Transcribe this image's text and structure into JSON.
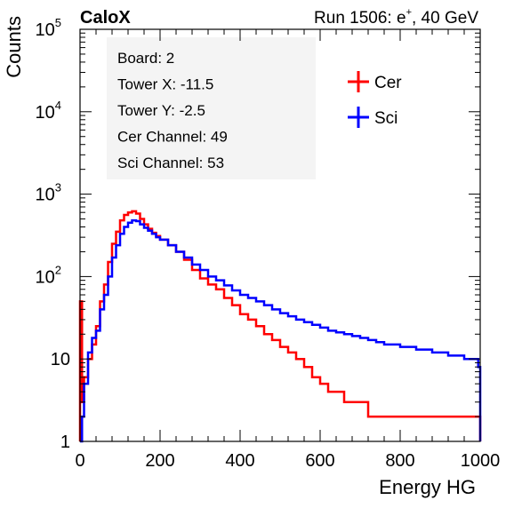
{
  "header": {
    "experiment": "CaloX",
    "run_prefix": "Run 1506: e",
    "run_sup": "+",
    "run_suffix": ", 40 GeV"
  },
  "info_box": {
    "lines": [
      "Board: 2",
      "Tower X: -11.5",
      "Tower Y: -2.5",
      "Cer Channel: 49",
      "Sci Channel: 53"
    ]
  },
  "chart_data": {
    "type": "line",
    "style": "histogram (step)",
    "xlabel": "Energy HG",
    "ylabel": "Counts",
    "xlim": [
      0,
      1000
    ],
    "ylim": [
      1,
      100000
    ],
    "yscale": "log",
    "xticks": [
      0,
      200,
      400,
      600,
      800,
      1000
    ],
    "xtick_labels": [
      "0",
      "200",
      "400",
      "600",
      "800",
      "1000"
    ],
    "yticks": [
      1,
      10,
      100,
      1000,
      10000,
      100000
    ],
    "ytick_labels": [
      {
        "base": "1",
        "exp": ""
      },
      {
        "base": "10",
        "exp": ""
      },
      {
        "base": "10",
        "exp": "2"
      },
      {
        "base": "10",
        "exp": "3"
      },
      {
        "base": "10",
        "exp": "4"
      },
      {
        "base": "10",
        "exp": "5"
      }
    ],
    "legend_position": "top-right",
    "bin_width": 5,
    "series": [
      {
        "name": "Cer",
        "color": "#ff0000",
        "x": [
          0,
          5,
          10,
          20,
          30,
          40,
          50,
          60,
          70,
          80,
          90,
          100,
          110,
          120,
          130,
          140,
          150,
          160,
          170,
          180,
          190,
          200,
          220,
          240,
          260,
          280,
          300,
          320,
          340,
          360,
          380,
          400,
          420,
          440,
          460,
          480,
          500,
          520,
          540,
          560,
          580,
          600,
          620,
          640,
          660,
          680,
          700,
          720,
          740,
          760,
          780,
          800,
          820,
          840,
          860,
          880,
          900,
          920,
          940,
          960,
          980,
          995
        ],
        "y": [
          50,
          3,
          6,
          10,
          15,
          25,
          50,
          80,
          150,
          250,
          350,
          480,
          560,
          600,
          620,
          580,
          500,
          430,
          380,
          340,
          310,
          280,
          240,
          200,
          160,
          120,
          95,
          80,
          70,
          55,
          45,
          35,
          30,
          25,
          20,
          17,
          14,
          12,
          10,
          8,
          6,
          5,
          4,
          4,
          3,
          3,
          3,
          2,
          2,
          2,
          2,
          2,
          2,
          2,
          2,
          2,
          2,
          2,
          2,
          2,
          2,
          2
        ]
      },
      {
        "name": "Sci",
        "color": "#0000ff",
        "x": [
          0,
          5,
          10,
          20,
          30,
          40,
          50,
          60,
          70,
          80,
          90,
          100,
          110,
          120,
          130,
          140,
          150,
          160,
          170,
          180,
          190,
          200,
          220,
          240,
          260,
          280,
          300,
          320,
          340,
          360,
          380,
          400,
          420,
          440,
          460,
          480,
          500,
          520,
          540,
          560,
          580,
          600,
          620,
          640,
          660,
          680,
          700,
          720,
          740,
          760,
          780,
          800,
          820,
          840,
          860,
          880,
          900,
          920,
          940,
          960,
          980,
          995
        ],
        "y": [
          1,
          2,
          5,
          12,
          18,
          22,
          40,
          60,
          100,
          170,
          240,
          330,
          400,
          450,
          480,
          470,
          430,
          390,
          360,
          330,
          300,
          280,
          240,
          200,
          170,
          140,
          120,
          100,
          90,
          78,
          68,
          60,
          55,
          50,
          45,
          40,
          36,
          33,
          30,
          28,
          26,
          24,
          22,
          21,
          20,
          19,
          18,
          17,
          16,
          15,
          15,
          14,
          14,
          13,
          13,
          12,
          12,
          11,
          11,
          10,
          10,
          8
        ]
      }
    ]
  }
}
